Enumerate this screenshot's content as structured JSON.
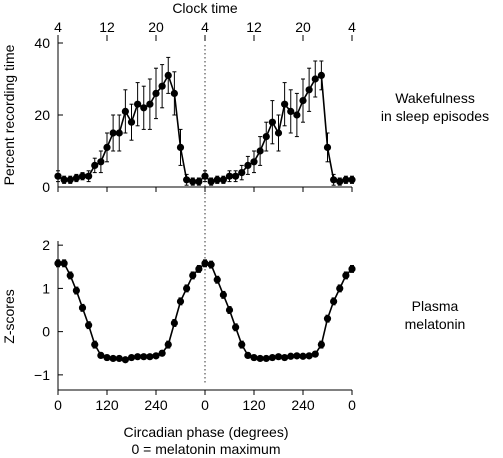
{
  "chart_data": [
    {
      "type": "line",
      "top_axis_title": "Clock time",
      "top_ticks": [
        "4",
        "12",
        "20",
        "4",
        "12",
        "20",
        "4"
      ],
      "ylabel": "Percent recording time",
      "yticks": [
        "0",
        "20",
        "40"
      ],
      "ylim": [
        0,
        40
      ],
      "xlim": [
        0,
        720
      ],
      "panel_label": [
        "Wakefulness",
        "in sleep episodes"
      ],
      "series": [
        {
          "x": [
            0,
            15,
            30,
            45,
            60,
            75,
            90,
            105,
            120,
            135,
            150,
            165,
            180,
            195,
            210,
            225,
            240,
            255,
            270,
            285,
            300,
            315,
            330,
            345,
            360,
            375,
            390,
            405,
            420,
            435,
            450,
            465,
            480,
            495,
            510,
            525,
            540,
            555,
            570,
            585,
            600,
            615,
            630,
            645,
            660,
            675,
            690,
            705,
            720
          ],
          "y": [
            3,
            2,
            2,
            2.5,
            3,
            3,
            6,
            7,
            11,
            15,
            15,
            21,
            18,
            23,
            22,
            23,
            26,
            28,
            31,
            26,
            11,
            2,
            1.5,
            1.5,
            3,
            1.5,
            2,
            2,
            3,
            3,
            4,
            6,
            7,
            10,
            14,
            18,
            15,
            23,
            21,
            20,
            24,
            27,
            30,
            31,
            11,
            2,
            1.5,
            2,
            2
          ],
          "yerr": [
            1.5,
            1,
            1,
            1,
            1,
            1.5,
            2,
            3,
            4,
            5,
            5,
            6,
            5,
            6,
            6,
            7,
            7,
            6,
            5,
            6,
            5,
            1.5,
            1,
            1,
            1.5,
            1,
            1,
            1,
            1.5,
            1.5,
            2,
            2.5,
            3,
            4,
            4,
            6,
            5,
            6,
            6,
            6,
            6,
            6,
            5,
            4,
            4,
            1.5,
            1,
            1,
            1
          ]
        }
      ]
    },
    {
      "type": "line",
      "ylabel": "Z-scores",
      "yticks": [
        "−1",
        "0",
        "1",
        "2"
      ],
      "ylim": [
        -1.35,
        2.05
      ],
      "xlim": [
        0,
        720
      ],
      "xticks": [
        "0",
        "120",
        "240",
        "0",
        "120",
        "240",
        "0"
      ],
      "xlabel": "Circadian phase (degrees)",
      "xlabel_line2": "0 = melatonin maximum",
      "panel_label": [
        "Plasma",
        "melatonin"
      ],
      "series": [
        {
          "x": [
            0,
            15,
            30,
            45,
            60,
            75,
            90,
            105,
            120,
            135,
            150,
            165,
            180,
            195,
            210,
            225,
            240,
            255,
            270,
            285,
            300,
            315,
            330,
            345,
            360,
            375,
            390,
            405,
            420,
            435,
            450,
            465,
            480,
            495,
            510,
            525,
            540,
            555,
            570,
            585,
            600,
            615,
            630,
            645,
            660,
            675,
            690,
            705,
            720
          ],
          "y": [
            1.58,
            1.58,
            1.3,
            0.95,
            0.55,
            0.15,
            -0.3,
            -0.55,
            -0.6,
            -0.62,
            -0.62,
            -0.65,
            -0.6,
            -0.58,
            -0.58,
            -0.58,
            -0.56,
            -0.5,
            -0.3,
            0.2,
            0.7,
            1.0,
            1.3,
            1.45,
            1.58,
            1.55,
            1.2,
            0.85,
            0.5,
            0.1,
            -0.3,
            -0.55,
            -0.6,
            -0.62,
            -0.62,
            -0.6,
            -0.58,
            -0.6,
            -0.57,
            -0.56,
            -0.57,
            -0.56,
            -0.52,
            -0.3,
            0.3,
            0.7,
            1.0,
            1.3,
            1.45
          ],
          "yerr": [
            0.08,
            0.08,
            0.08,
            0.08,
            0.08,
            0.08,
            0.08,
            0.06,
            0.06,
            0.05,
            0.05,
            0.05,
            0.05,
            0.05,
            0.05,
            0.05,
            0.05,
            0.06,
            0.08,
            0.08,
            0.08,
            0.08,
            0.08,
            0.08,
            0.08,
            0.08,
            0.08,
            0.08,
            0.08,
            0.08,
            0.08,
            0.06,
            0.06,
            0.05,
            0.05,
            0.05,
            0.05,
            0.05,
            0.05,
            0.05,
            0.05,
            0.05,
            0.06,
            0.08,
            0.08,
            0.08,
            0.08,
            0.08,
            0.08
          ]
        }
      ]
    }
  ]
}
